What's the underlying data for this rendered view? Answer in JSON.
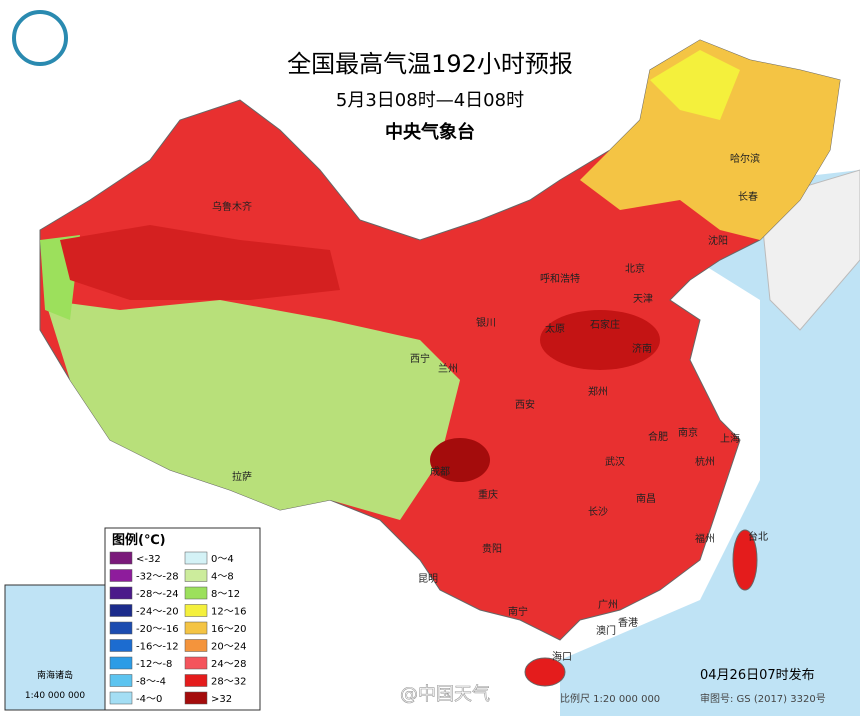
{
  "header": {
    "title": "全国最高气温192小时预报",
    "subtitle": "5月3日08时—4日08时",
    "org": "中央气象台"
  },
  "legend": {
    "title": "图例(℃)",
    "items": [
      {
        "label": "<-32",
        "color": "#7a1a7a"
      },
      {
        "label": "-32～-28",
        "color": "#8e1c9c"
      },
      {
        "label": "-28～-24",
        "color": "#4b1a8a"
      },
      {
        "label": "-24～-20",
        "color": "#1c2c8c"
      },
      {
        "label": "-20～-16",
        "color": "#1c4cb0"
      },
      {
        "label": "-16～-12",
        "color": "#1c6cd0"
      },
      {
        "label": "-12～-8",
        "color": "#2c9ce6"
      },
      {
        "label": "-8～-4",
        "color": "#5cc4f0"
      },
      {
        "label": "-4～0",
        "color": "#a4def4"
      },
      {
        "label": "0～4",
        "color": "#d4f2f6"
      },
      {
        "label": "4～8",
        "color": "#ccec9c"
      },
      {
        "label": "8～12",
        "color": "#9ce05c"
      },
      {
        "label": "12～16",
        "color": "#f4f03c"
      },
      {
        "label": "16～20",
        "color": "#f4c444"
      },
      {
        "label": "20～24",
        "color": "#f4943c"
      },
      {
        "label": "24～28",
        "color": "#f4545c"
      },
      {
        "label": "28～32",
        "color": "#e41c1c"
      },
      {
        "label": ">32",
        "color": "#a40c0c"
      }
    ]
  },
  "cities": [
    "乌鲁木齐",
    "哈尔滨",
    "长春",
    "沈阳",
    "北京",
    "天津",
    "呼和浩特",
    "石家庄",
    "太原",
    "济南",
    "银川",
    "西宁",
    "兰州",
    "郑州",
    "西安",
    "合肥",
    "南京",
    "上海",
    "杭州",
    "武汉",
    "成都",
    "重庆",
    "长沙",
    "南昌",
    "福州",
    "台北",
    "贵阳",
    "昆明",
    "南宁",
    "广州",
    "香港",
    "澳门",
    "海口",
    "拉萨"
  ],
  "inset": {
    "title": "南海诸岛",
    "scale": "1:40 000 000"
  },
  "footer": {
    "release": "04月26日07时发布",
    "scale": "比例尺 1:20 000 000",
    "approval": "审图号: GS (2017) 3320号",
    "watermark": "@中国天气"
  }
}
